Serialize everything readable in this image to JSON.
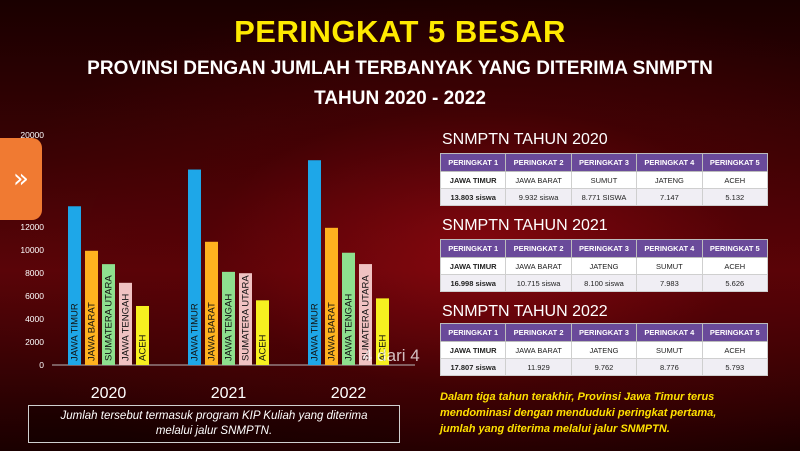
{
  "header": {
    "title": "PERINGKAT 5 BESAR",
    "subtitle_line1": "PROVINSI DENGAN JUMLAH TERBANYAK YANG DITERIMA SNMPTN",
    "subtitle_line2": "TAHUN 2020 - 2022"
  },
  "nav": {
    "next_glyph": "»"
  },
  "page_indicator": "4 dari 4",
  "footnote": {
    "line1": "Jumlah tersebut termasuk program KIP Kuliah yang diterima",
    "line2": "melalui jalur SNMPTN."
  },
  "chart_data": {
    "type": "bar",
    "ylim": [
      0,
      20000
    ],
    "yticks": [
      0,
      2000,
      4000,
      6000,
      8000,
      10000,
      12000,
      20000
    ],
    "groups": [
      {
        "label": "2020",
        "bars": [
          {
            "name": "JAWA TIMUR",
            "value": 13803,
            "color": "#1ea7e8"
          },
          {
            "name": "JAWA BARAT",
            "value": 9932,
            "color": "#ffb21f"
          },
          {
            "name": "SUMATERA UTARA",
            "value": 8771,
            "color": "#8ee08e"
          },
          {
            "name": "JAWA TENGAH",
            "value": 7147,
            "color": "#f0c2c2"
          },
          {
            "name": "ACEH",
            "value": 5132,
            "color": "#f6f020"
          }
        ]
      },
      {
        "label": "2021",
        "bars": [
          {
            "name": "JAWA TIMUR",
            "value": 16998,
            "color": "#1ea7e8"
          },
          {
            "name": "JAWA BARAT",
            "value": 10715,
            "color": "#ffb21f"
          },
          {
            "name": "JAWA TENGAH",
            "value": 8100,
            "color": "#8ee08e"
          },
          {
            "name": "SUMATERA UTARA",
            "value": 7983,
            "color": "#f0c2c2"
          },
          {
            "name": "ACEH",
            "value": 5626,
            "color": "#f6f020"
          }
        ]
      },
      {
        "label": "2022",
        "bars": [
          {
            "name": "JAWA TIMUR",
            "value": 17807,
            "color": "#1ea7e8"
          },
          {
            "name": "JAWA BARAT",
            "value": 11929,
            "color": "#ffb21f"
          },
          {
            "name": "JAWA TENGAH",
            "value": 9762,
            "color": "#8ee08e"
          },
          {
            "name": "SUMATERA UTARA",
            "value": 8776,
            "color": "#f0c2c2"
          },
          {
            "name": "ACEH",
            "value": 5793,
            "color": "#f6f020"
          }
        ]
      }
    ]
  },
  "tables": [
    {
      "title": "SNMPTN TAHUN 2020",
      "headers": [
        "PERINGKAT 1",
        "PERINGKAT 2",
        "PERINGKAT 3",
        "PERINGKAT 4",
        "PERINGKAT 5"
      ],
      "provinces": [
        "JAWA TIMUR",
        "JAWA BARAT",
        "SUMUT",
        "JATENG",
        "ACEH"
      ],
      "counts": [
        "13.803 siswa",
        "9.932 siswa",
        "8.771 SISWA",
        "7.147",
        "5.132"
      ]
    },
    {
      "title": "SNMPTN TAHUN 2021",
      "headers": [
        "PERINGKAT 1",
        "PERINGKAT 2",
        "PERINGKAT 3",
        "PERINGKAT 4",
        "PERINGKAT 5"
      ],
      "provinces": [
        "JAWA TIMUR",
        "JAWA BARAT",
        "JATENG",
        "SUMUT",
        "ACEH"
      ],
      "counts": [
        "16.998 siswa",
        "10.715 siswa",
        "8.100 siswa",
        "7.983",
        "5.626"
      ]
    },
    {
      "title": "SNMPTN TAHUN 2022",
      "headers": [
        "PERINGKAT 1",
        "PERINGKAT 2",
        "PERINGKAT 3",
        "PERINGKAT 4",
        "PERINGKAT 5"
      ],
      "provinces": [
        "JAWA TIMUR",
        "JAWA BARAT",
        "JATENG",
        "SUMUT",
        "ACEH"
      ],
      "counts": [
        "17.807 siswa",
        "11.929",
        "9.762",
        "8.776",
        "5.793"
      ]
    }
  ],
  "summary": {
    "line1": "Dalam tiga tahun terakhir, Provinsi Jawa Timur terus",
    "line2": "mendominasi dengan menduduki peringkat pertama,",
    "line3": "jumlah yang diterima melalui jalur SNMPTN."
  }
}
